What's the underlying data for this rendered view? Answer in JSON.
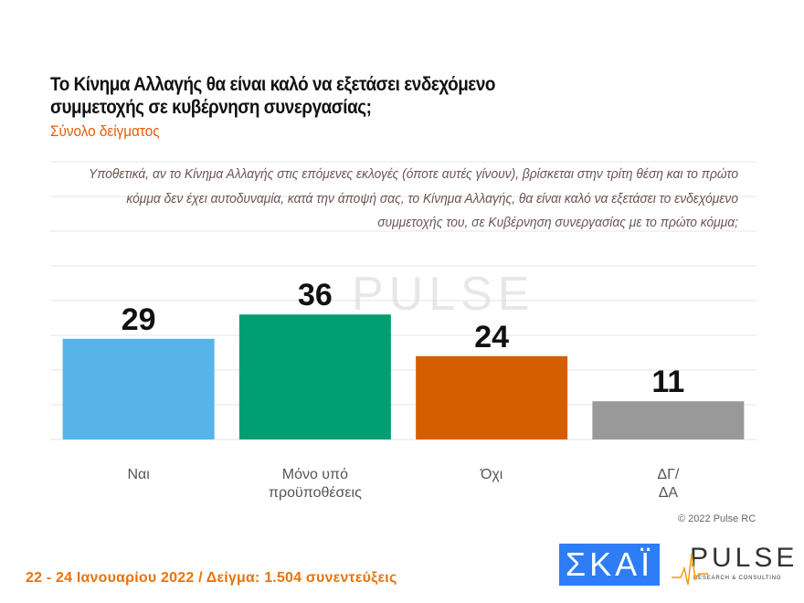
{
  "chart_data": {
    "type": "bar",
    "title": "Το Κίνημα Αλλαγής θα είναι καλό να εξετάσει ενδεχόμενο συμμετοχής σε κυβέρνηση συνεργασίας;",
    "subtitle": "Σύνολο δείγματος",
    "question": "Υποθετικά, αν το Κίνημα Αλλαγής στις επόμενες εκλογές (όποτε αυτές γίνουν), βρίσκεται στην τρίτη θέση και το πρώτο κόμμα δεν έχει αυτοδυναμία, κατά την άποψή σας, το Κίνημα Αλλαγής, θα είναι καλό να εξετάσει το ενδεχόμενο συμμετοχής του, σε Κυβέρνηση συνεργασίας με το πρώτο κόμμα;",
    "categories": [
      [
        "Ναι"
      ],
      [
        "Μόνο υπό",
        "προϋποθέσεις"
      ],
      [
        "Όχι"
      ],
      [
        "ΔΓ/",
        "ΔΑ"
      ]
    ],
    "values": [
      29,
      36,
      24,
      11
    ],
    "colors": [
      "#56b4e9",
      "#009e73",
      "#d55e00",
      "#999999"
    ],
    "ylim": [
      0,
      80
    ],
    "grid": true,
    "xlabel": "",
    "ylabel": ""
  },
  "watermark": "PULSE",
  "copyright": "© 2022 Pulse RC",
  "footer": "22 - 24  Ιανουαρίου  2022  /  Δείγμα:  1.504 συνεντεύξεις",
  "logos": {
    "skai": "ΣΚΑΪ",
    "pulse": "PULSE",
    "pulse_sub": "RESEARCH & CONSULTING"
  }
}
